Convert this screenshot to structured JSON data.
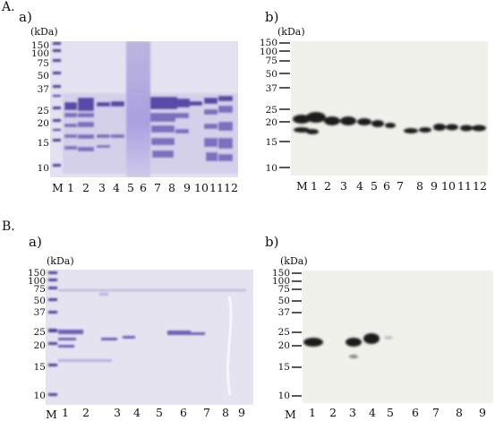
{
  "sections": [
    {
      "label": "A.",
      "panels": [
        {
          "label": "a)",
          "unit": "(kDa)",
          "mw_markers": [
            "150",
            "100",
            "75",
            "50",
            "37",
            "25",
            "20",
            "15",
            "10"
          ],
          "ladder_label": "M",
          "lane_labels": [
            "1",
            "2",
            "3",
            "4",
            "5",
            "6",
            "7",
            "8",
            "9",
            "10",
            "11",
            "12"
          ]
        },
        {
          "label": "b)",
          "unit": "(kDa)",
          "mw_markers": [
            "150",
            "100",
            "75",
            "50",
            "37",
            "25",
            "20",
            "15",
            "10"
          ],
          "ladder_label": "M",
          "lane_labels": [
            "1",
            "2",
            "3",
            "4",
            "5",
            "6",
            "7",
            "8",
            "9",
            "10",
            "11",
            "12"
          ]
        }
      ]
    },
    {
      "label": "B.",
      "panels": [
        {
          "label": "a)",
          "unit": "(kDa)",
          "mw_markers": [
            "150",
            "100",
            "75",
            "50",
            "37",
            "25",
            "20",
            "15",
            "10"
          ],
          "ladder_label": "M",
          "lane_labels": [
            "1",
            "2",
            "3",
            "4",
            "5",
            "6",
            "7",
            "8",
            "9"
          ]
        },
        {
          "label": "b)",
          "unit": "(kDa)",
          "mw_markers": [
            "150",
            "100",
            "75",
            "50",
            "37",
            "25",
            "20",
            "15",
            "10"
          ],
          "ladder_label": "M",
          "lane_labels": [
            "1",
            "2",
            "3",
            "4",
            "5",
            "6",
            "7",
            "8",
            "9"
          ]
        }
      ]
    }
  ],
  "colors": {
    "coomassie_bg": "#e6e3f1",
    "coomassie_band": "#5a4aa8",
    "western_bg": "#f1f1ec",
    "western_band": "#1a1a1a"
  }
}
